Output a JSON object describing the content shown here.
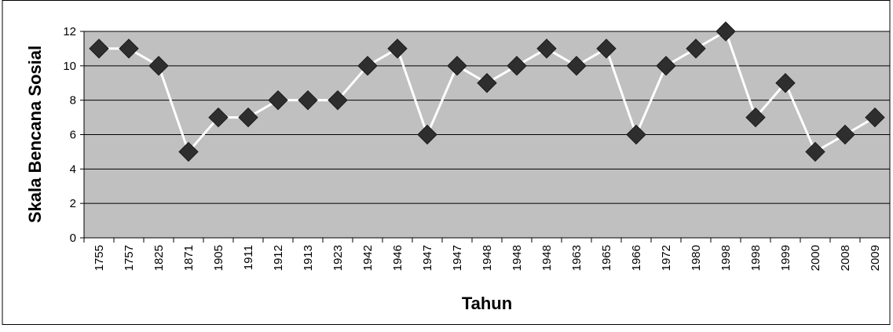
{
  "chart_data": {
    "type": "line",
    "title": "",
    "xlabel": "Tahun",
    "ylabel": "Skala Bencana Sosial",
    "categories": [
      "1755",
      "1757",
      "1825",
      "1871",
      "1905",
      "1911",
      "1912",
      "1913",
      "1923",
      "1942",
      "1946",
      "1947",
      "1947",
      "1948",
      "1948",
      "1948",
      "1963",
      "1965",
      "1966",
      "1972",
      "1980",
      "1998",
      "1998",
      "1999",
      "2000",
      "2008",
      "2009"
    ],
    "series": [
      {
        "values": [
          11,
          11,
          10,
          5,
          7,
          7,
          8,
          8,
          8,
          10,
          11,
          6,
          10,
          9,
          10,
          11,
          10,
          11,
          6,
          10,
          11,
          12,
          7,
          9,
          5,
          6,
          7
        ]
      }
    ],
    "ylim": [
      0,
      12
    ],
    "yticks": [
      0,
      2,
      4,
      6,
      8,
      10,
      12
    ],
    "grid": true,
    "legend": "none",
    "colors": {
      "plot_background": "#c0c0c0",
      "gridline": "#000000",
      "line": "#ffffff",
      "marker": "#2e2e2e",
      "frame": "#000000"
    }
  }
}
